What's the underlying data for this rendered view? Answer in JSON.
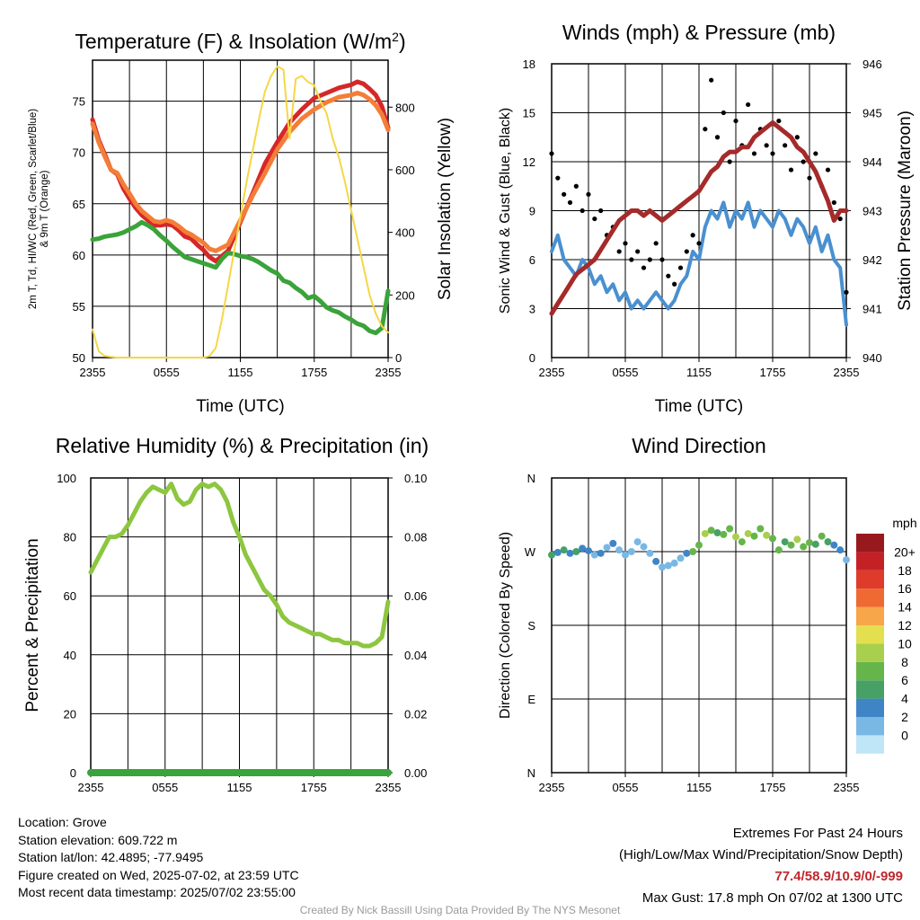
{
  "chart_data": [
    {
      "id": "temp",
      "type": "line",
      "title": "Temperature (F) & Insolation (W/m²)",
      "xlabel": "Time (UTC)",
      "ylabel": "2m T, Td, HI/WC (Red, Green, Scarlet/Blue)\n& 9m T (Orange)",
      "ylabel_right": "Solar Insolation (Yellow)",
      "x_ticks": [
        "2355",
        "0555",
        "1155",
        "1755",
        "2355"
      ],
      "x_range": [
        0,
        24
      ],
      "ylim": [
        50,
        79
      ],
      "y_ticks": [
        50,
        55,
        60,
        65,
        70,
        75
      ],
      "ylim_right": [
        0,
        950
      ],
      "y_ticks_right": [
        0,
        200,
        400,
        600,
        800
      ],
      "grid": true,
      "series": [
        {
          "name": "2m T",
          "color": "#d62728",
          "axis": "left",
          "x": [
            0,
            0.5,
            1,
            1.5,
            2,
            2.5,
            3,
            3.5,
            4,
            4.5,
            5,
            5.5,
            6,
            6.5,
            7,
            7.5,
            8,
            8.5,
            9,
            9.5,
            10,
            11,
            12,
            13,
            14,
            15,
            16,
            17,
            18,
            19,
            20,
            21,
            21.5,
            22,
            22.5,
            23,
            23.5,
            24
          ],
          "y": [
            73.2,
            71.2,
            69.8,
            68.3,
            67.9,
            66.5,
            65.5,
            64.6,
            63.9,
            63.4,
            62.9,
            62.9,
            63.0,
            62.9,
            62.4,
            61.8,
            61.6,
            61.0,
            60.5,
            59.8,
            59.4,
            60.4,
            63.2,
            66.0,
            68.9,
            71.0,
            72.9,
            74.2,
            75.3,
            75.8,
            76.3,
            76.6,
            76.9,
            76.7,
            76.2,
            75.6,
            74.5,
            72.4
          ]
        },
        {
          "name": "9m T",
          "color": "#f47d37",
          "axis": "left",
          "x": [
            0,
            0.5,
            1,
            1.5,
            2,
            2.5,
            3,
            3.5,
            4,
            4.5,
            5,
            5.5,
            6,
            6.5,
            7,
            7.5,
            8,
            8.5,
            9,
            9.5,
            10,
            11,
            12,
            13,
            14,
            15,
            16,
            17,
            18,
            19,
            20,
            21,
            21.5,
            22,
            22.5,
            23,
            23.5,
            24
          ],
          "y": [
            72.8,
            71.0,
            69.6,
            68.3,
            68.0,
            66.9,
            66.0,
            65.0,
            64.3,
            63.8,
            63.3,
            63.2,
            63.4,
            63.2,
            62.8,
            62.3,
            62.0,
            61.6,
            61.2,
            60.6,
            60.4,
            61.0,
            63.4,
            65.8,
            68.0,
            70.3,
            72.0,
            73.3,
            74.2,
            74.9,
            75.4,
            75.6,
            75.8,
            75.6,
            75.2,
            74.6,
            73.7,
            72.2
          ]
        },
        {
          "name": "2m Td",
          "color": "#3aa33a",
          "axis": "left",
          "x": [
            0,
            0.5,
            1,
            1.5,
            2,
            2.5,
            3,
            3.5,
            4,
            4.5,
            5,
            5.5,
            6,
            6.5,
            7,
            7.5,
            8,
            8.5,
            9,
            9.5,
            10,
            10.5,
            11,
            11.5,
            12,
            12.5,
            13,
            13.5,
            14,
            14.5,
            15,
            15.5,
            16,
            16.5,
            17,
            17.5,
            18,
            18.5,
            19,
            19.5,
            20,
            20.5,
            21,
            21.5,
            22,
            22.5,
            23,
            23.5,
            24
          ],
          "y": [
            61.5,
            61.6,
            61.8,
            61.9,
            62.0,
            62.2,
            62.5,
            62.8,
            63.2,
            62.9,
            62.5,
            61.9,
            61.4,
            60.8,
            60.3,
            59.8,
            59.6,
            59.4,
            59.2,
            59.0,
            58.8,
            59.6,
            60.2,
            60.1,
            59.9,
            59.8,
            59.6,
            59.3,
            58.9,
            58.5,
            58.2,
            57.5,
            57.3,
            56.8,
            56.4,
            55.8,
            56.0,
            55.5,
            54.9,
            54.6,
            54.4,
            54.0,
            53.7,
            53.3,
            53.1,
            52.6,
            52.4,
            52.9,
            56.5
          ]
        },
        {
          "name": "Solar Insolation",
          "color": "#f5d746",
          "axis": "right",
          "x": [
            0,
            0.5,
            1,
            2,
            3,
            4,
            5,
            6,
            7,
            8,
            9,
            9.5,
            10,
            10.5,
            11,
            11.5,
            12,
            12.5,
            13,
            13.5,
            14,
            14.5,
            15,
            15.5,
            16,
            16.5,
            17,
            17.5,
            18,
            18.5,
            19,
            19.5,
            20,
            20.5,
            21,
            21.5,
            22,
            22.5,
            23,
            23.5,
            24
          ],
          "y": [
            90,
            20,
            5,
            0,
            0,
            0,
            0,
            0,
            0,
            0,
            0,
            5,
            30,
            120,
            230,
            340,
            450,
            560,
            660,
            760,
            850,
            900,
            930,
            920,
            700,
            890,
            900,
            880,
            870,
            820,
            780,
            700,
            640,
            560,
            470,
            380,
            290,
            200,
            140,
            100,
            80
          ]
        }
      ]
    },
    {
      "id": "winds",
      "type": "scatter",
      "title": "Winds (mph) & Pressure (mb)",
      "xlabel": "Time (UTC)",
      "ylabel": "Sonic Wind & Gust (Blue, Black)",
      "ylabel_right": "Station Pressure (Maroon)",
      "x_ticks": [
        "2355",
        "0555",
        "1155",
        "1755",
        "2355"
      ],
      "x_range": [
        0,
        24
      ],
      "ylim": [
        0,
        18
      ],
      "y_ticks": [
        0,
        3,
        6,
        9,
        12,
        15,
        18
      ],
      "ylim_right": [
        940,
        946
      ],
      "y_ticks_right": [
        940,
        941,
        942,
        943,
        944,
        945,
        946
      ],
      "grid": true,
      "series": [
        {
          "name": "Sonic Wind",
          "color": "#4a90d0",
          "axis": "left",
          "x": [
            0,
            0.5,
            1,
            1.5,
            2,
            2.5,
            3,
            3.5,
            4,
            4.5,
            5,
            5.5,
            6,
            6.5,
            7,
            7.5,
            8,
            8.5,
            9,
            9.5,
            10,
            10.5,
            11,
            11.5,
            12,
            12.5,
            13,
            13.5,
            14,
            14.5,
            15,
            15.5,
            16,
            16.5,
            17,
            17.5,
            18,
            18.5,
            19,
            19.5,
            20,
            20.5,
            21,
            21.5,
            22,
            22.5,
            23,
            23.5,
            24
          ],
          "y": [
            6.5,
            7.5,
            6.0,
            5.5,
            5.0,
            6.0,
            5.5,
            4.5,
            5.0,
            4.0,
            4.5,
            3.5,
            4.0,
            3.0,
            3.5,
            3.0,
            3.5,
            4.0,
            3.5,
            3.0,
            3.5,
            4.5,
            5.0,
            6.5,
            6.0,
            8.0,
            9.0,
            8.5,
            9.5,
            8.0,
            9.0,
            8.5,
            9.5,
            8.0,
            9.0,
            8.5,
            8.0,
            9.0,
            8.5,
            7.5,
            8.5,
            8.0,
            7.0,
            8.0,
            6.5,
            7.5,
            6.0,
            5.5,
            2.0
          ]
        },
        {
          "name": "Gust",
          "color": "#000000",
          "axis": "left",
          "x": [
            0,
            0.5,
            1,
            1.5,
            2,
            2.5,
            3,
            3.5,
            4,
            4.5,
            5,
            5.5,
            6,
            6.5,
            7,
            7.5,
            8,
            8.5,
            9,
            9.5,
            10,
            10.5,
            11,
            11.5,
            12,
            12.5,
            13,
            13.5,
            14,
            14.5,
            15,
            15.5,
            16,
            16.5,
            17,
            17.5,
            18,
            18.5,
            19,
            19.5,
            20,
            20.5,
            21,
            21.5,
            22,
            22.5,
            23,
            23.5,
            24
          ],
          "y": [
            12.5,
            11.0,
            10.0,
            9.5,
            10.5,
            9.0,
            10.0,
            8.5,
            9.0,
            7.5,
            8.0,
            6.5,
            7.0,
            6.0,
            6.5,
            5.5,
            6.0,
            7.0,
            6.0,
            5.0,
            4.5,
            5.5,
            6.5,
            7.5,
            7.0,
            14.0,
            17.0,
            13.5,
            15.0,
            12.0,
            14.5,
            13.0,
            15.5,
            12.5,
            14.0,
            13.0,
            12.5,
            14.5,
            13.0,
            11.5,
            13.5,
            12.0,
            11.0,
            12.5,
            10.5,
            11.5,
            9.5,
            8.5,
            4.0
          ]
        },
        {
          "name": "Station Pressure",
          "color": "#a52a2a",
          "axis": "right",
          "x": [
            0,
            0.5,
            1,
            1.5,
            2,
            2.5,
            3,
            3.5,
            4,
            4.5,
            5,
            5.5,
            6,
            6.5,
            7,
            7.5,
            8,
            8.5,
            9,
            9.5,
            10,
            10.5,
            11,
            11.5,
            12,
            12.5,
            13,
            13.5,
            14,
            14.5,
            15,
            15.5,
            16,
            16.5,
            17,
            17.5,
            18,
            18.5,
            19,
            19.5,
            20,
            20.5,
            21,
            21.5,
            22,
            22.5,
            23,
            23.5,
            24
          ],
          "y": [
            940.9,
            941.1,
            941.3,
            941.5,
            941.7,
            941.8,
            941.9,
            942.0,
            942.2,
            942.4,
            942.6,
            942.8,
            942.9,
            943.0,
            943.0,
            942.9,
            943.0,
            942.9,
            942.8,
            942.9,
            943.0,
            943.1,
            943.2,
            943.3,
            943.4,
            943.6,
            943.8,
            943.9,
            944.1,
            944.2,
            944.2,
            944.3,
            944.3,
            944.5,
            944.6,
            944.7,
            944.8,
            944.7,
            944.6,
            944.5,
            944.3,
            944.2,
            944.0,
            943.8,
            943.5,
            943.2,
            942.8,
            943.0,
            943.0
          ]
        }
      ]
    },
    {
      "id": "rh",
      "type": "line",
      "title": "Relative Humidity (%) & Precipitation (in)",
      "ylabel": "Percent & Precipitation",
      "x_ticks": [
        "2355",
        "0555",
        "1155",
        "1755",
        "2355"
      ],
      "x_range": [
        0,
        24
      ],
      "ylim": [
        0,
        100
      ],
      "y_ticks": [
        0,
        20,
        40,
        60,
        80,
        100
      ],
      "ylim_right": [
        0,
        0.1
      ],
      "y_ticks_right": [
        "0.00",
        "0.02",
        "0.04",
        "0.06",
        "0.08",
        "0.10"
      ],
      "grid": true,
      "series": [
        {
          "name": "Relative Humidity",
          "color": "#8dc63f",
          "axis": "left",
          "x": [
            0,
            0.5,
            1,
            1.5,
            2,
            2.5,
            3,
            3.5,
            4,
            4.5,
            5,
            5.5,
            6,
            6.5,
            7,
            7.5,
            8,
            8.5,
            9,
            9.5,
            10,
            10.5,
            11,
            11.5,
            12,
            12.5,
            13,
            13.5,
            14,
            14.5,
            15,
            15.5,
            16,
            16.5,
            17,
            17.5,
            18,
            18.5,
            19,
            19.5,
            20,
            20.5,
            21,
            21.5,
            22,
            22.5,
            23,
            23.5,
            24
          ],
          "y": [
            68,
            72,
            76,
            80,
            80,
            81,
            84,
            88,
            92,
            95,
            97,
            96,
            95,
            98,
            93,
            91,
            92,
            96,
            98,
            97,
            98,
            96,
            92,
            85,
            80,
            74,
            70,
            66,
            62,
            60,
            57,
            53,
            51,
            50,
            49,
            48,
            47,
            47,
            46,
            45,
            45,
            44,
            44,
            44,
            43,
            43,
            44,
            46,
            58
          ]
        },
        {
          "name": "Precipitation",
          "color": "#3aa33a",
          "axis": "right",
          "x": [
            0,
            24
          ],
          "y": [
            0,
            0
          ]
        }
      ]
    },
    {
      "id": "wdir",
      "type": "scatter",
      "title": "Wind Direction",
      "ylabel": "Direction (Colored By Speed)",
      "x_ticks": [
        "2355",
        "0555",
        "1155",
        "1755",
        "2355"
      ],
      "x_range": [
        0,
        24
      ],
      "y_ticks": [
        "N",
        "E",
        "S",
        "W",
        "N"
      ],
      "ylim": [
        0,
        360
      ],
      "grid": true,
      "colorbar": {
        "title": "mph",
        "labels": [
          "0",
          "2",
          "4",
          "6",
          "8",
          "10",
          "12",
          "14",
          "16",
          "18",
          "20+"
        ],
        "colors": [
          "#bfe6f7",
          "#79b8e4",
          "#3f85c5",
          "#47a167",
          "#66b54a",
          "#a8cf4d",
          "#e3df4f",
          "#f7a64a",
          "#ef6a32",
          "#df3b2a",
          "#c42127",
          "#98191d"
        ]
      },
      "points": {
        "x": [
          0,
          0.5,
          1,
          1.5,
          2,
          2.5,
          3,
          3.5,
          4,
          4.5,
          5,
          5.5,
          6,
          6.5,
          7,
          7.5,
          8,
          8.5,
          9,
          9.5,
          10,
          10.5,
          11,
          11.5,
          12,
          12.5,
          13,
          13.5,
          14,
          14.5,
          15,
          15.5,
          16,
          16.5,
          17,
          17.5,
          18,
          18.5,
          19,
          19.5,
          20,
          20.5,
          21,
          21.5,
          22,
          22.5,
          23,
          23.5,
          24
        ],
        "y": [
          266,
          269,
          272,
          268,
          270,
          274,
          271,
          266,
          268,
          275,
          280,
          272,
          266,
          270,
          282,
          276,
          268,
          258,
          251,
          253,
          256,
          262,
          268,
          270,
          278,
          292,
          296,
          293,
          291,
          298,
          288,
          282,
          292,
          289,
          298,
          290,
          286,
          272,
          282,
          278,
          285,
          276,
          281,
          279,
          289,
          282,
          278,
          272,
          260
        ],
        "speed": [
          6,
          5,
          7,
          5,
          6,
          4,
          5,
          3,
          4,
          3,
          4,
          3,
          3,
          2,
          3,
          3,
          3,
          4,
          3,
          2,
          3,
          3,
          4,
          8,
          9,
          10,
          9,
          7,
          9,
          8,
          10,
          8,
          11,
          8,
          9,
          10,
          8,
          9,
          7,
          9,
          10,
          8,
          9,
          7,
          8,
          6,
          5,
          4,
          3
        ]
      }
    }
  ],
  "info_left": {
    "location": "Location: Grove",
    "elevation": "Station elevation: 609.722 m",
    "latlon": "Station lat/lon: 42.4895; -77.9495",
    "created": "Figure created on Wed, 2025-07-02, at 23:59 UTC",
    "recent": "Most recent data timestamp: 2025/07/02 23:55:00"
  },
  "info_right": {
    "line1": "Extremes For Past 24 Hours",
    "line2": "(High/Low/Max Wind/Precipitation/Snow Depth)",
    "extremes": "77.4/58.9/10.9/0/-999",
    "max_gust": "Max Gust: 17.8 mph On 07/02 at 1300 UTC"
  },
  "credit": "Created By Nick Bassill Using Data Provided By The NYS Mesonet"
}
